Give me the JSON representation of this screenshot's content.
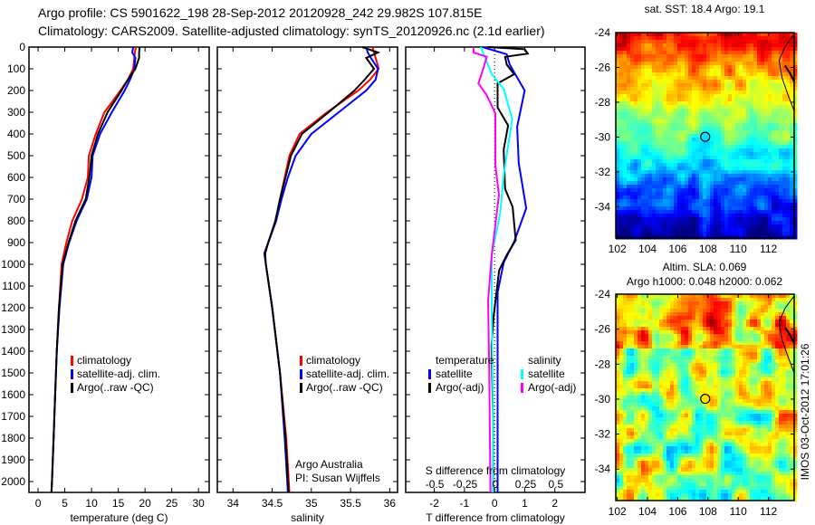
{
  "header": {
    "line1": "Argo profile: CS 5901622_198 28-Sep-2012 20120928_242 29.982S 107.815E",
    "line2": "Climatology: CARS2009. Satellite-adjusted climatology: synTS_20120926.nc (2.1d earlier)"
  },
  "credits": {
    "line1": "Argo Australia",
    "line2": "PI: Susan Wijffels"
  },
  "timestamp": "IMOS 03-Oct-2012 17:01:26",
  "colors": {
    "climatology": "#ff0000",
    "satellite": "#0000ff",
    "argo": "#000000",
    "s_satellite": "#00ffff",
    "s_argo": "#ff00ff"
  },
  "chart_data": [
    {
      "type": "line",
      "id": "temperature",
      "xlabel": "temperature (deg C)",
      "ylabel": "",
      "xlim": [
        -1.7,
        32
      ],
      "ylim": [
        2050,
        0
      ],
      "xticks": [
        "0",
        "5",
        "10",
        "15",
        "20",
        "25",
        "30"
      ],
      "yticks": [
        "0",
        "100",
        "200",
        "300",
        "400",
        "500",
        "600",
        "700",
        "800",
        "900",
        "1000",
        "1100",
        "1200",
        "1300",
        "1400",
        "1500",
        "1600",
        "1700",
        "1800",
        "1900",
        "2000"
      ],
      "legend": [
        "climatology",
        "satellite-adj. clim.",
        "Argo(..raw -QC)"
      ],
      "depth": [
        0,
        25,
        50,
        100,
        150,
        200,
        300,
        400,
        500,
        600,
        700,
        800,
        900,
        1000,
        1200,
        1400,
        1600,
        1800,
        2000,
        2050
      ],
      "series": [
        {
          "name": "climatology",
          "color": "#ff0000",
          "values": [
            18.3,
            18.1,
            18.0,
            17.8,
            16.8,
            15.4,
            12.4,
            10.8,
            9.5,
            9.3,
            8.2,
            6.4,
            5.3,
            4.4,
            3.9,
            3.5,
            3.2,
            2.9,
            2.6,
            2.5
          ]
        },
        {
          "name": "satellite-adj. clim.",
          "color": "#0000ff",
          "values": [
            17.8,
            17.6,
            18.2,
            18.0,
            17.2,
            16.2,
            13.8,
            11.6,
            10.2,
            10.0,
            9.1,
            7.2,
            5.8,
            4.7,
            4.0,
            3.5,
            3.2,
            2.9,
            2.6,
            2.5
          ]
        },
        {
          "name": "Argo(..raw -QC)",
          "color": "#000000",
          "values": [
            19.0,
            18.9,
            18.9,
            18.2,
            16.8,
            15.6,
            13.0,
            11.2,
            10.0,
            9.6,
            8.9,
            7.0,
            5.7,
            4.6,
            3.9,
            3.5,
            3.2,
            2.9,
            2.6,
            2.5
          ]
        }
      ]
    },
    {
      "type": "line",
      "id": "salinity",
      "xlabel": "salinity",
      "xlim": [
        33.8,
        36.1
      ],
      "ylim": [
        2050,
        0
      ],
      "xticks": [
        "34",
        "34.5",
        "35",
        "35.5",
        "36"
      ],
      "legend": [
        "climatology",
        "satellite-adj. clim.",
        "Argo(..raw -QC)"
      ],
      "depth": [
        0,
        25,
        50,
        100,
        150,
        200,
        300,
        400,
        500,
        600,
        700,
        800,
        900,
        950,
        1000,
        1200,
        1500,
        1800,
        2050
      ],
      "series": [
        {
          "name": "climatology",
          "color": "#ff0000",
          "values": [
            35.78,
            35.8,
            35.82,
            35.86,
            35.75,
            35.6,
            35.2,
            34.85,
            34.72,
            34.66,
            34.6,
            34.55,
            34.45,
            34.4,
            34.42,
            34.5,
            34.6,
            34.68,
            34.72
          ]
        },
        {
          "name": "satellite-adj. clim.",
          "color": "#0000ff",
          "values": [
            35.7,
            35.72,
            35.76,
            35.85,
            35.82,
            35.7,
            35.35,
            35.0,
            34.8,
            34.7,
            34.62,
            34.55,
            34.45,
            34.4,
            34.42,
            34.5,
            34.6,
            34.66,
            34.7
          ]
        },
        {
          "name": "Argo(..raw -QC)",
          "color": "#000000",
          "values": [
            35.65,
            35.85,
            35.7,
            35.8,
            35.68,
            35.55,
            35.22,
            34.88,
            34.74,
            34.67,
            34.6,
            34.54,
            34.45,
            34.41,
            34.42,
            34.5,
            34.6,
            34.67,
            34.71
          ]
        }
      ]
    },
    {
      "type": "line",
      "id": "differences",
      "xlabel": "T difference from climatology",
      "x2label": "S difference from climatology",
      "xlim": [
        -2.95,
        3.0
      ],
      "x2lim": [
        -0.74,
        0.74
      ],
      "ylim": [
        2050,
        0
      ],
      "xticks": [
        "-2",
        "-1",
        "0",
        "1",
        "2"
      ],
      "x2ticks": [
        "-0.5",
        "-0.25",
        "0",
        "0.25",
        "0.5"
      ],
      "legend_headers": [
        "temperature",
        "salinity"
      ],
      "legend": [
        "satellite",
        "Argo(-adj)",
        "satellite",
        "Argo(-adj)"
      ],
      "series": [
        {
          "name": "T satellite",
          "axis": "T",
          "color": "#0000ff",
          "depth": [
            0,
            33,
            80,
            200,
            367,
            533,
            742,
            896,
            992,
            1130,
            1500,
            2050
          ],
          "values": [
            -0.4,
            0.4,
            0.5,
            1.0,
            0.75,
            0.8,
            1.05,
            0.65,
            0.3,
            0.1,
            0.1,
            0.1
          ]
        },
        {
          "name": "T Argo(-adj)",
          "axis": "T",
          "color": "#000000",
          "depth": [
            0,
            10,
            30,
            45,
            80,
            125,
            167,
            278,
            361,
            472,
            653,
            736,
            889,
            958,
            1028,
            1236,
            1375,
            1700,
            2050
          ],
          "values": [
            -0.2,
            1.0,
            1.1,
            0.35,
            0.4,
            0.65,
            0.1,
            0.1,
            0.45,
            0.3,
            0.35,
            0.6,
            0.7,
            0.4,
            0.15,
            -0.03,
            -0.1,
            -0.05,
            -0.05
          ]
        },
        {
          "name": "S satellite",
          "axis": "S",
          "color": "#00ffff",
          "depth": [
            0,
            125,
            194,
            333,
            400,
            583,
            764,
            958,
            1236,
            1600,
            2050
          ],
          "values": [
            -0.12,
            -0.03,
            0.07,
            0.14,
            0.12,
            0.07,
            0.04,
            -0.03,
            -0.03,
            -0.02,
            -0.02
          ]
        },
        {
          "name": "S Argo(-adj)",
          "axis": "S",
          "color": "#ff00ff",
          "depth": [
            0,
            25,
            45,
            100,
            167,
            222,
            306,
            542,
            680,
            958,
            1167,
            1500,
            2050
          ],
          "values": [
            -0.18,
            -0.18,
            -0.07,
            -0.1,
            -0.14,
            -0.07,
            0.0,
            0.0,
            0.03,
            -0.03,
            -0.06,
            -0.05,
            -0.04
          ]
        }
      ]
    },
    {
      "type": "heatmap",
      "id": "sst-map",
      "title": "sat. SST: 18.4 Argo: 19.1",
      "xlim": [
        101.9,
        113.7
      ],
      "ylim": [
        -35.8,
        -24
      ],
      "xticks": [
        "102",
        "104",
        "106",
        "108",
        "110",
        "112"
      ],
      "yticks": [
        "-24",
        "-26",
        "-28",
        "-30",
        "-32",
        "-34"
      ],
      "argo_position": {
        "lon": 107.815,
        "lat": -29.982
      }
    },
    {
      "type": "heatmap",
      "id": "sla-map",
      "title": "Altim. SLA: 0.069",
      "subtitle": "Argo h1000: 0.048 h2000: 0.062",
      "xlim": [
        101.9,
        113.7
      ],
      "ylim": [
        -35.8,
        -24
      ],
      "xticks": [
        "102",
        "104",
        "106",
        "108",
        "110",
        "112"
      ],
      "yticks": [
        "-24",
        "-26",
        "-28",
        "-30",
        "-32",
        "-34"
      ],
      "argo_position": {
        "lon": 107.815,
        "lat": -29.982
      }
    }
  ]
}
